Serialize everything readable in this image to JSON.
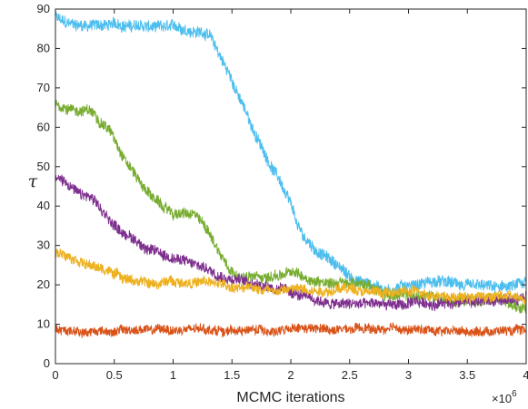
{
  "chart_data": {
    "type": "line",
    "title": "",
    "xlabel": "MCMC iterations",
    "ylabel": "τ",
    "x_multiplier_label": "×10",
    "x_multiplier_exponent": "6",
    "xlim": [
      0,
      4
    ],
    "ylim": [
      0,
      90
    ],
    "xticks": [
      0,
      0.5,
      1,
      1.5,
      2,
      2.5,
      3,
      3.5,
      4
    ],
    "xtick_labels": [
      "0",
      "0.5",
      "1",
      "1.5",
      "2",
      "2.5",
      "3",
      "3.5",
      "4"
    ],
    "yticks": [
      0,
      10,
      20,
      30,
      40,
      50,
      60,
      70,
      80,
      90
    ],
    "ytick_labels": [
      "0",
      "10",
      "20",
      "30",
      "40",
      "50",
      "60",
      "70",
      "80",
      "90"
    ],
    "grid": false,
    "series": [
      {
        "color": "#4DBEEE",
        "noise": 1.4,
        "x": [
          0,
          0.1,
          0.3,
          0.6,
          0.9,
          1.1,
          1.3,
          1.4,
          1.5,
          1.6,
          1.7,
          1.8,
          1.9,
          2.0,
          2.05,
          2.1,
          2.2,
          2.3,
          2.4,
          2.5,
          2.6,
          2.7,
          2.8,
          3.0,
          3.2,
          3.4,
          3.6,
          3.8,
          4.0
        ],
        "y": [
          88,
          86,
          86,
          86,
          85,
          85,
          84,
          78,
          72,
          65,
          58,
          52,
          47,
          40,
          35,
          32,
          29,
          27,
          25,
          22,
          21,
          20,
          19,
          20,
          21,
          20,
          19,
          19,
          20
        ]
      },
      {
        "color": "#77AC30",
        "noise": 1.3,
        "x": [
          0,
          0.1,
          0.3,
          0.45,
          0.6,
          0.75,
          0.9,
          1.0,
          1.1,
          1.2,
          1.3,
          1.4,
          1.5,
          1.6,
          1.8,
          2.0,
          2.2,
          2.4,
          2.6,
          2.8,
          3.0,
          3.2,
          3.4,
          3.6,
          3.8,
          4.0
        ],
        "y": [
          66,
          65,
          64,
          60,
          52,
          45,
          40,
          38,
          38,
          37,
          34,
          28,
          24,
          22,
          22,
          23,
          21,
          21,
          20,
          18,
          17,
          17,
          16,
          16,
          16,
          15
        ]
      },
      {
        "color": "#7E2F8E",
        "noise": 1.3,
        "x": [
          0,
          0.1,
          0.2,
          0.3,
          0.4,
          0.5,
          0.6,
          0.7,
          0.8,
          0.9,
          1.0,
          1.2,
          1.4,
          1.6,
          1.8,
          2.0,
          2.2,
          2.4,
          2.6,
          2.8,
          3.0,
          3.2,
          3.4,
          3.6,
          3.8,
          4.0
        ],
        "y": [
          47,
          46,
          43,
          42,
          38,
          35,
          33,
          31,
          29,
          28,
          27,
          25,
          23,
          21,
          20,
          18,
          16,
          15,
          15,
          15,
          15,
          15,
          16,
          16,
          16,
          17
        ]
      },
      {
        "color": "#EDB120",
        "noise": 1.2,
        "x": [
          0,
          0.1,
          0.2,
          0.3,
          0.4,
          0.5,
          0.6,
          0.7,
          0.8,
          1.0,
          1.2,
          1.4,
          1.6,
          1.8,
          2.0,
          2.2,
          2.4,
          2.6,
          2.8,
          3.0,
          3.2,
          3.4,
          3.6,
          3.8,
          4.0
        ],
        "y": [
          28,
          28,
          27,
          25,
          24,
          23,
          22,
          21,
          20,
          21,
          21,
          20,
          19,
          19,
          19,
          19,
          19,
          19,
          18,
          18,
          18,
          17,
          17,
          17,
          17
        ]
      },
      {
        "color": "#D95319",
        "noise": 1.1,
        "x": [
          0,
          0.5,
          1.0,
          1.5,
          2.0,
          2.5,
          3.0,
          3.5,
          4.0
        ],
        "y": [
          8.5,
          8.5,
          8.5,
          8.5,
          8.5,
          8.5,
          8.5,
          8.5,
          8.5
        ]
      }
    ]
  }
}
